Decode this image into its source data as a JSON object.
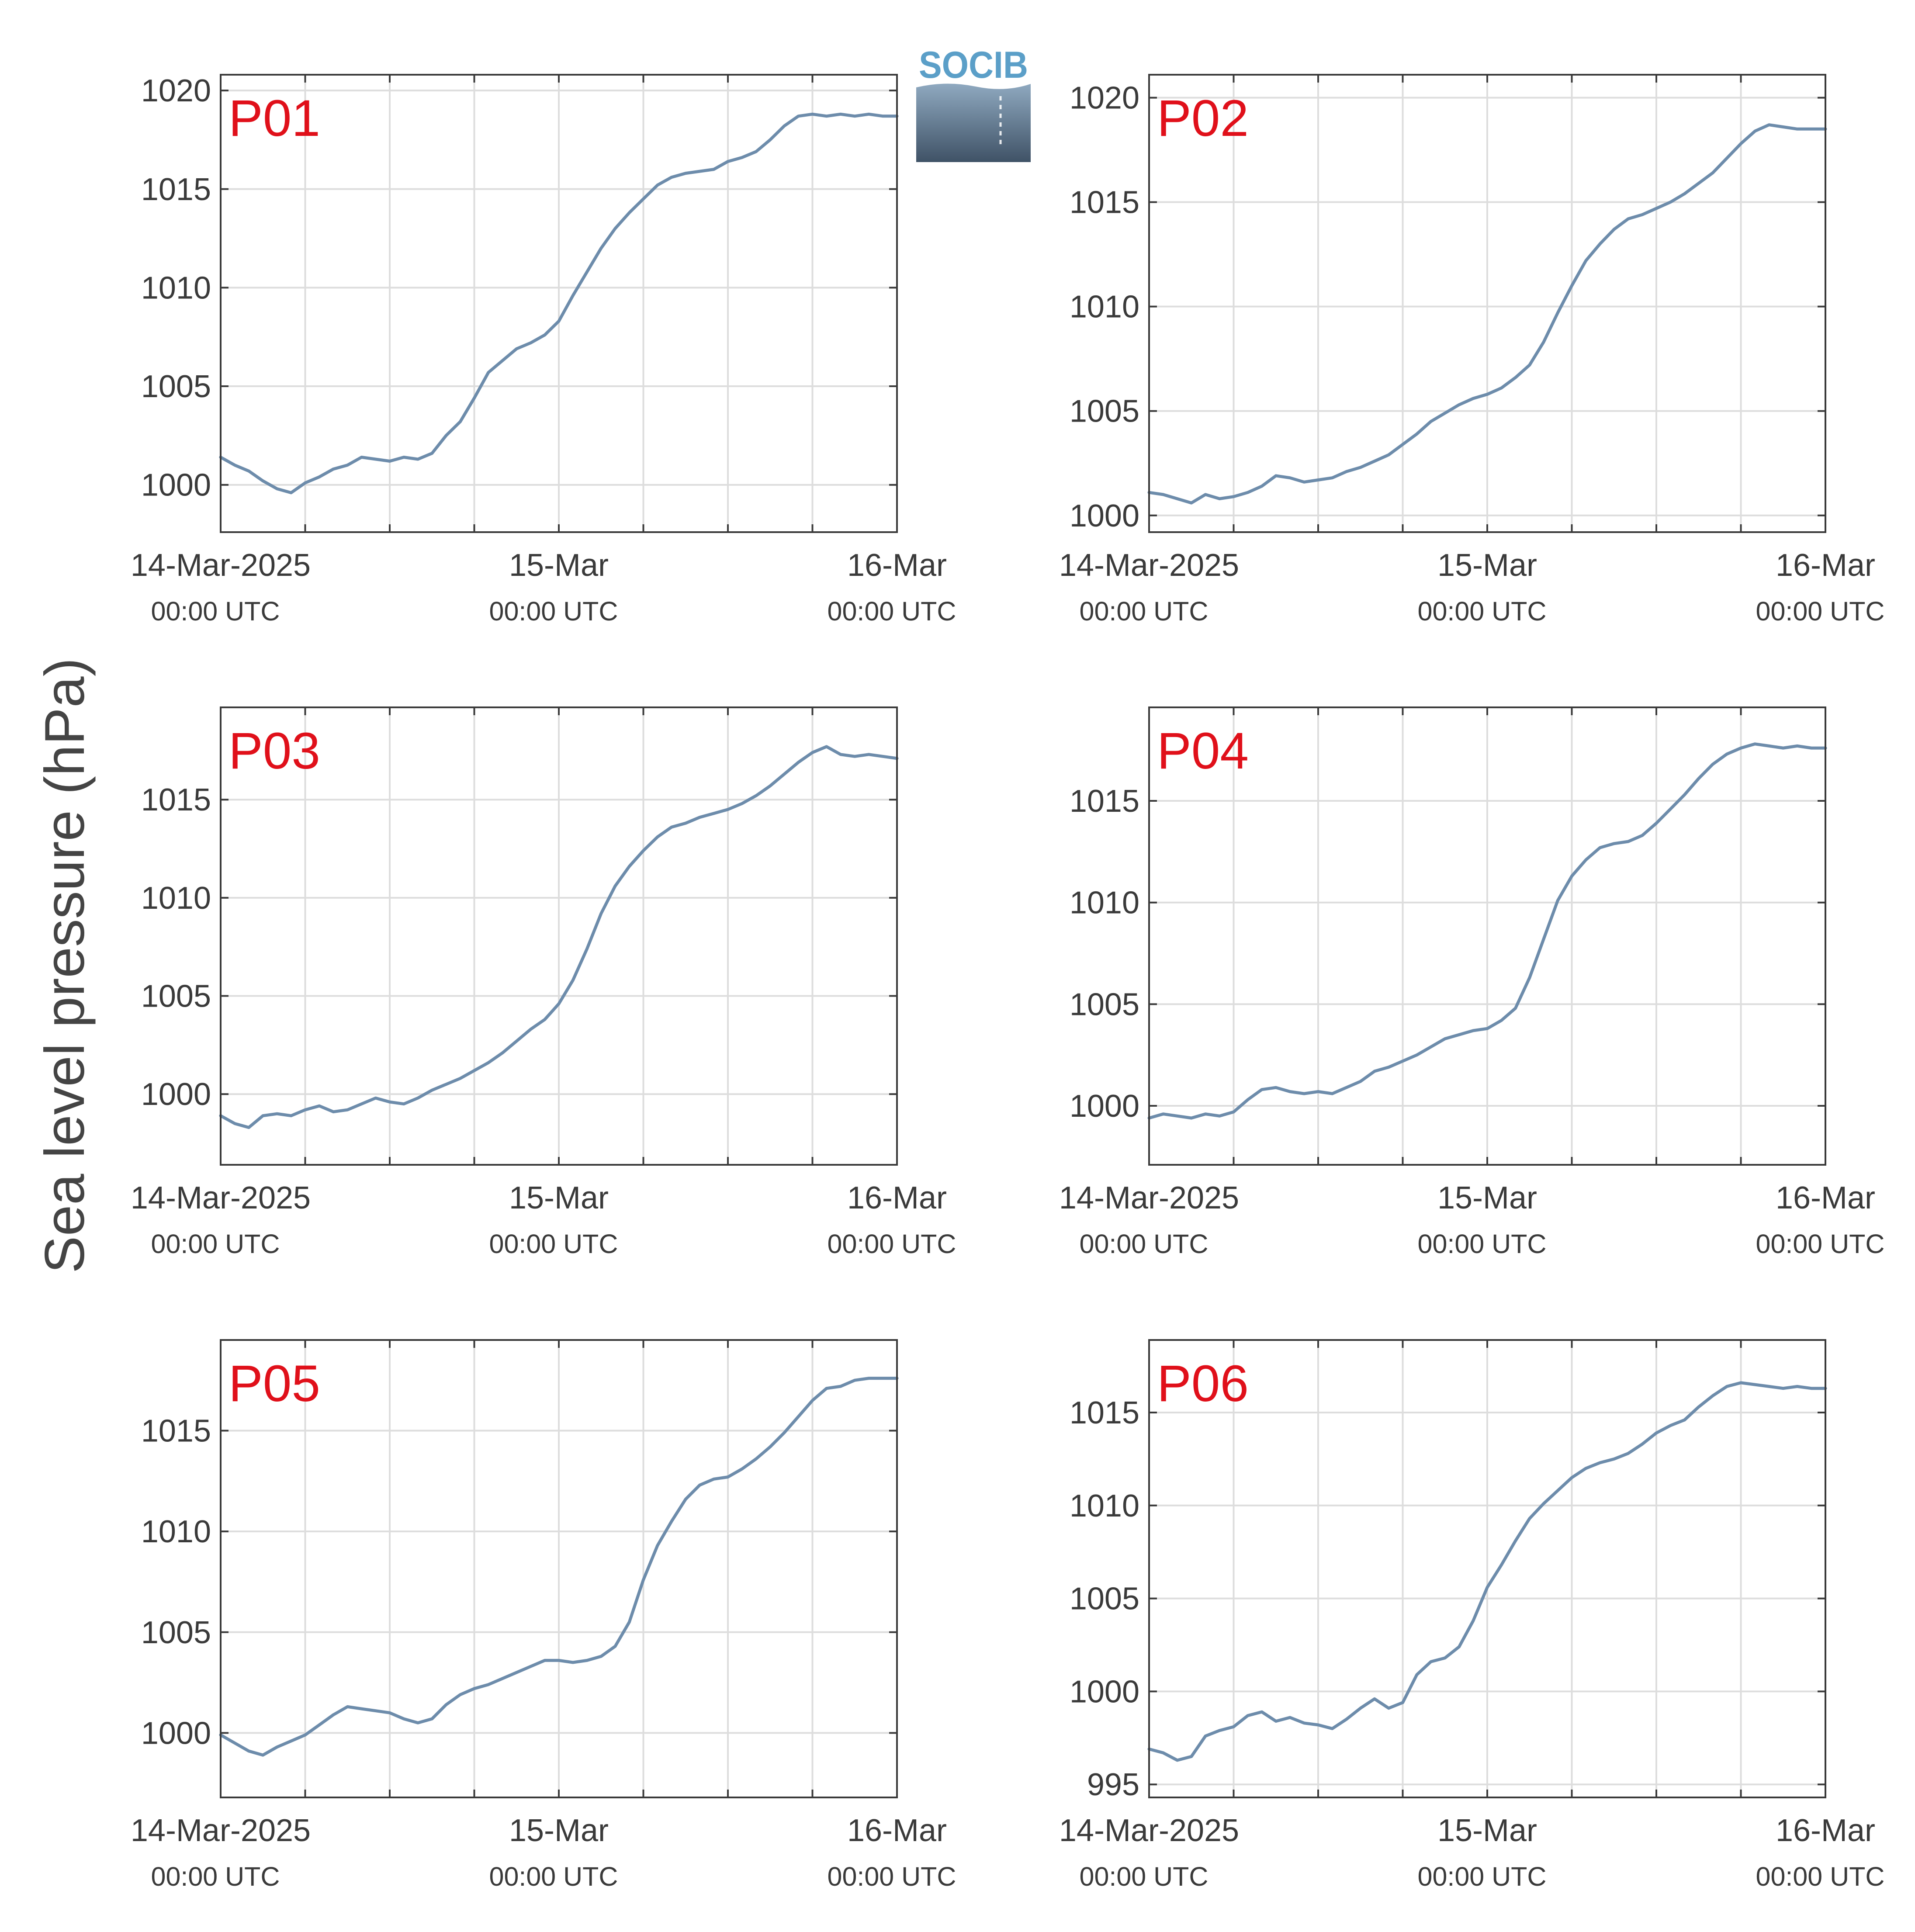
{
  "figure": {
    "ylabel": "Sea level pressure (hPa)",
    "logo_text": "SOCIB"
  },
  "colors": {
    "line": "#6d8cab",
    "panel_label": "#e0101a",
    "grid": "#dddddd",
    "axis": "#3a3a3a",
    "logo_text": "#5b9fc8",
    "logo_top": "#8fa9c0",
    "logo_bottom": "#3f5266"
  },
  "chart_data": [
    {
      "type": "line",
      "label": "P01",
      "x_ticks": [
        {
          "date": "14-Mar-2025",
          "time": "00:00 UTC"
        },
        {
          "date": "15-Mar",
          "time": "00:00 UTC"
        },
        {
          "date": "16-Mar",
          "time": "00:00 UTC"
        }
      ],
      "x_range_hours": [
        0,
        48
      ],
      "yticks": [
        1000,
        1005,
        1010,
        1015,
        1020
      ],
      "ylim": [
        997.6,
        1020.8
      ],
      "x_hours": [
        0,
        1,
        2,
        3,
        4,
        5,
        6,
        7,
        8,
        9,
        10,
        11,
        12,
        13,
        14,
        15,
        16,
        17,
        18,
        19,
        20,
        21,
        22,
        23,
        24,
        25,
        26,
        27,
        28,
        29,
        30,
        31,
        32,
        33,
        34,
        35,
        36,
        37,
        38,
        39,
        40,
        41,
        42,
        43,
        44,
        45,
        46,
        47,
        48
      ],
      "values": [
        1001.4,
        1001.0,
        1000.7,
        1000.2,
        999.8,
        999.6,
        1000.1,
        1000.4,
        1000.8,
        1001.0,
        1001.4,
        1001.3,
        1001.2,
        1001.4,
        1001.3,
        1001.6,
        1002.5,
        1003.2,
        1004.4,
        1005.7,
        1006.3,
        1006.9,
        1007.2,
        1007.6,
        1008.3,
        1009.6,
        1010.8,
        1012.0,
        1013.0,
        1013.8,
        1014.5,
        1015.2,
        1015.6,
        1015.8,
        1015.9,
        1016.0,
        1016.4,
        1016.6,
        1016.9,
        1017.5,
        1018.2,
        1018.7,
        1018.8,
        1018.7,
        1018.8,
        1018.7,
        1018.8,
        1018.7,
        1018.7
      ]
    },
    {
      "type": "line",
      "label": "P02",
      "x_ticks": [
        {
          "date": "14-Mar-2025",
          "time": "00:00 UTC"
        },
        {
          "date": "15-Mar",
          "time": "00:00 UTC"
        },
        {
          "date": "16-Mar",
          "time": "00:00 UTC"
        }
      ],
      "x_range_hours": [
        0,
        48
      ],
      "yticks": [
        1000,
        1005,
        1010,
        1015,
        1020
      ],
      "ylim": [
        999.2,
        1021.1
      ],
      "x_hours": [
        0,
        1,
        2,
        3,
        4,
        5,
        6,
        7,
        8,
        9,
        10,
        11,
        12,
        13,
        14,
        15,
        16,
        17,
        18,
        19,
        20,
        21,
        22,
        23,
        24,
        25,
        26,
        27,
        28,
        29,
        30,
        31,
        32,
        33,
        34,
        35,
        36,
        37,
        38,
        39,
        40,
        41,
        42,
        43,
        44,
        45,
        46,
        47,
        48
      ],
      "values": [
        1001.1,
        1001.0,
        1000.8,
        1000.6,
        1001.0,
        1000.8,
        1000.9,
        1001.1,
        1001.4,
        1001.9,
        1001.8,
        1001.6,
        1001.7,
        1001.8,
        1002.1,
        1002.3,
        1002.6,
        1002.9,
        1003.4,
        1003.9,
        1004.5,
        1004.9,
        1005.3,
        1005.6,
        1005.8,
        1006.1,
        1006.6,
        1007.2,
        1008.3,
        1009.7,
        1011.0,
        1012.2,
        1013.0,
        1013.7,
        1014.2,
        1014.4,
        1014.7,
        1015.0,
        1015.4,
        1015.9,
        1016.4,
        1017.1,
        1017.8,
        1018.4,
        1018.7,
        1018.6,
        1018.5,
        1018.5,
        1018.5
      ]
    },
    {
      "type": "line",
      "label": "P03",
      "x_ticks": [
        {
          "date": "14-Mar-2025",
          "time": "00:00 UTC"
        },
        {
          "date": "15-Mar",
          "time": "00:00 UTC"
        },
        {
          "date": "16-Mar",
          "time": "00:00 UTC"
        }
      ],
      "x_range_hours": [
        0,
        48
      ],
      "yticks": [
        1000,
        1005,
        1010,
        1015
      ],
      "ylim": [
        996.4,
        1019.7
      ],
      "x_hours": [
        0,
        1,
        2,
        3,
        4,
        5,
        6,
        7,
        8,
        9,
        10,
        11,
        12,
        13,
        14,
        15,
        16,
        17,
        18,
        19,
        20,
        21,
        22,
        23,
        24,
        25,
        26,
        27,
        28,
        29,
        30,
        31,
        32,
        33,
        34,
        35,
        36,
        37,
        38,
        39,
        40,
        41,
        42,
        43,
        44,
        45,
        46,
        47,
        48
      ],
      "values": [
        998.9,
        998.5,
        998.3,
        998.9,
        999.0,
        998.9,
        999.2,
        999.4,
        999.1,
        999.2,
        999.5,
        999.8,
        999.6,
        999.5,
        999.8,
        1000.2,
        1000.5,
        1000.8,
        1001.2,
        1001.6,
        1002.1,
        1002.7,
        1003.3,
        1003.8,
        1004.6,
        1005.8,
        1007.4,
        1009.2,
        1010.6,
        1011.6,
        1012.4,
        1013.1,
        1013.6,
        1013.8,
        1014.1,
        1014.3,
        1014.5,
        1014.8,
        1015.2,
        1015.7,
        1016.3,
        1016.9,
        1017.4,
        1017.7,
        1017.3,
        1017.2,
        1017.3,
        1017.2,
        1017.1
      ]
    },
    {
      "type": "line",
      "label": "P04",
      "x_ticks": [
        {
          "date": "14-Mar-2025",
          "time": "00:00 UTC"
        },
        {
          "date": "15-Mar",
          "time": "00:00 UTC"
        },
        {
          "date": "16-Mar",
          "time": "00:00 UTC"
        }
      ],
      "x_range_hours": [
        0,
        48
      ],
      "yticks": [
        1000,
        1005,
        1010,
        1015
      ],
      "ylim": [
        997.1,
        1019.6
      ],
      "x_hours": [
        0,
        1,
        2,
        3,
        4,
        5,
        6,
        7,
        8,
        9,
        10,
        11,
        12,
        13,
        14,
        15,
        16,
        17,
        18,
        19,
        20,
        21,
        22,
        23,
        24,
        25,
        26,
        27,
        28,
        29,
        30,
        31,
        32,
        33,
        34,
        35,
        36,
        37,
        38,
        39,
        40,
        41,
        42,
        43,
        44,
        45,
        46,
        47,
        48
      ],
      "values": [
        999.4,
        999.6,
        999.5,
        999.4,
        999.6,
        999.5,
        999.7,
        1000.3,
        1000.8,
        1000.9,
        1000.7,
        1000.6,
        1000.7,
        1000.6,
        1000.9,
        1001.2,
        1001.7,
        1001.9,
        1002.2,
        1002.5,
        1002.9,
        1003.3,
        1003.5,
        1003.7,
        1003.8,
        1004.2,
        1004.8,
        1006.3,
        1008.2,
        1010.1,
        1011.3,
        1012.1,
        1012.7,
        1012.9,
        1013.0,
        1013.3,
        1013.9,
        1014.6,
        1015.3,
        1016.1,
        1016.8,
        1017.3,
        1017.6,
        1017.8,
        1017.7,
        1017.6,
        1017.7,
        1017.6,
        1017.6
      ]
    },
    {
      "type": "line",
      "label": "P05",
      "x_ticks": [
        {
          "date": "14-Mar-2025",
          "time": "00:00 UTC"
        },
        {
          "date": "15-Mar",
          "time": "00:00 UTC"
        },
        {
          "date": "16-Mar",
          "time": "00:00 UTC"
        }
      ],
      "x_range_hours": [
        0,
        48
      ],
      "yticks": [
        1000,
        1005,
        1010,
        1015
      ],
      "ylim": [
        996.8,
        1019.5
      ],
      "x_hours": [
        0,
        1,
        2,
        3,
        4,
        5,
        6,
        7,
        8,
        9,
        10,
        11,
        12,
        13,
        14,
        15,
        16,
        17,
        18,
        19,
        20,
        21,
        22,
        23,
        24,
        25,
        26,
        27,
        28,
        29,
        30,
        31,
        32,
        33,
        34,
        35,
        36,
        37,
        38,
        39,
        40,
        41,
        42,
        43,
        44,
        45,
        46,
        47,
        48
      ],
      "values": [
        999.9,
        999.5,
        999.1,
        998.9,
        999.3,
        999.6,
        999.9,
        1000.4,
        1000.9,
        1001.3,
        1001.2,
        1001.1,
        1001.0,
        1000.7,
        1000.5,
        1000.7,
        1001.4,
        1001.9,
        1002.2,
        1002.4,
        1002.7,
        1003.0,
        1003.3,
        1003.6,
        1003.6,
        1003.5,
        1003.6,
        1003.8,
        1004.3,
        1005.5,
        1007.6,
        1009.3,
        1010.5,
        1011.6,
        1012.3,
        1012.6,
        1012.7,
        1013.1,
        1013.6,
        1014.2,
        1014.9,
        1015.7,
        1016.5,
        1017.1,
        1017.2,
        1017.5,
        1017.6,
        1017.6,
        1017.6
      ]
    },
    {
      "type": "line",
      "label": "P06",
      "x_ticks": [
        {
          "date": "14-Mar-2025",
          "time": "00:00 UTC"
        },
        {
          "date": "15-Mar",
          "time": "00:00 UTC"
        },
        {
          "date": "16-Mar",
          "time": "00:00 UTC"
        }
      ],
      "x_range_hours": [
        0,
        48
      ],
      "yticks": [
        995,
        1000,
        1005,
        1010,
        1015
      ],
      "ylim": [
        994.3,
        1018.9
      ],
      "x_hours": [
        0,
        1,
        2,
        3,
        4,
        5,
        6,
        7,
        8,
        9,
        10,
        11,
        12,
        13,
        14,
        15,
        16,
        17,
        18,
        19,
        20,
        21,
        22,
        23,
        24,
        25,
        26,
        27,
        28,
        29,
        30,
        31,
        32,
        33,
        34,
        35,
        36,
        37,
        38,
        39,
        40,
        41,
        42,
        43,
        44,
        45,
        46,
        47,
        48
      ],
      "values": [
        996.9,
        996.7,
        996.3,
        996.5,
        997.6,
        997.9,
        998.1,
        998.7,
        998.9,
        998.4,
        998.6,
        998.3,
        998.2,
        998.0,
        998.5,
        999.1,
        999.6,
        999.1,
        999.4,
        1000.9,
        1001.6,
        1001.8,
        1002.4,
        1003.8,
        1005.6,
        1006.8,
        1008.1,
        1009.3,
        1010.1,
        1010.8,
        1011.5,
        1012.0,
        1012.3,
        1012.5,
        1012.8,
        1013.3,
        1013.9,
        1014.3,
        1014.6,
        1015.3,
        1015.9,
        1016.4,
        1016.6,
        1016.5,
        1016.4,
        1016.3,
        1016.4,
        1016.3,
        1016.3
      ]
    }
  ]
}
